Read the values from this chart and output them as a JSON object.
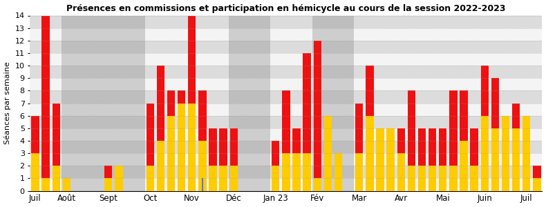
{
  "title": "Présences en commissions et participation en hémicycle au cours de la session 2022-2023",
  "ylabel": "Séances par semaine",
  "ylim": [
    0,
    14
  ],
  "yticks": [
    0,
    1,
    2,
    3,
    4,
    5,
    6,
    7,
    8,
    9,
    10,
    11,
    12,
    13,
    14
  ],
  "color_red": "#ee1111",
  "color_yellow": "#ffcc00",
  "color_blue": "#5577ee",
  "bg_light": "#e8e8e8",
  "bg_dark": "#c0c0c0",
  "bg_stripe_light": "#f4f4f4",
  "bg_stripe_dark": "#dcdcdc",
  "red_values": [
    6,
    14,
    7,
    1,
    0,
    0,
    0,
    2,
    1,
    0,
    0,
    7,
    10,
    8,
    8,
    14,
    8,
    5,
    5,
    5,
    0,
    0,
    0,
    4,
    8,
    5,
    11,
    12,
    6,
    3,
    0,
    7,
    10,
    5,
    5,
    5,
    8,
    5,
    5,
    5,
    8,
    8,
    5,
    10,
    9,
    5,
    7,
    6,
    2
  ],
  "yellow_values": [
    3,
    1,
    2,
    1,
    0,
    0,
    0,
    1,
    2,
    0,
    0,
    2,
    4,
    6,
    7,
    7,
    4,
    2,
    2,
    2,
    0,
    0,
    0,
    2,
    3,
    3,
    3,
    1,
    6,
    3,
    0,
    3,
    6,
    5,
    5,
    3,
    2,
    2,
    2,
    2,
    2,
    4,
    2,
    6,
    5,
    6,
    5,
    6,
    1
  ],
  "blue_marker_index": 16,
  "month_labels": [
    "Juil",
    "Août",
    "Sept",
    "Oct",
    "Nov",
    "Déc",
    "Jan 23",
    "Fév",
    "Mar",
    "Avr",
    "Mai",
    "Juin",
    "Juil"
  ],
  "month_starts": [
    0,
    3,
    7,
    11,
    15,
    19,
    23,
    27,
    31,
    35,
    39,
    43,
    47
  ],
  "month_shading": [
    0,
    1,
    1,
    0,
    0,
    1,
    0,
    1,
    0,
    0,
    0,
    0,
    0
  ],
  "bar_width": 0.75,
  "n_bars": 49
}
